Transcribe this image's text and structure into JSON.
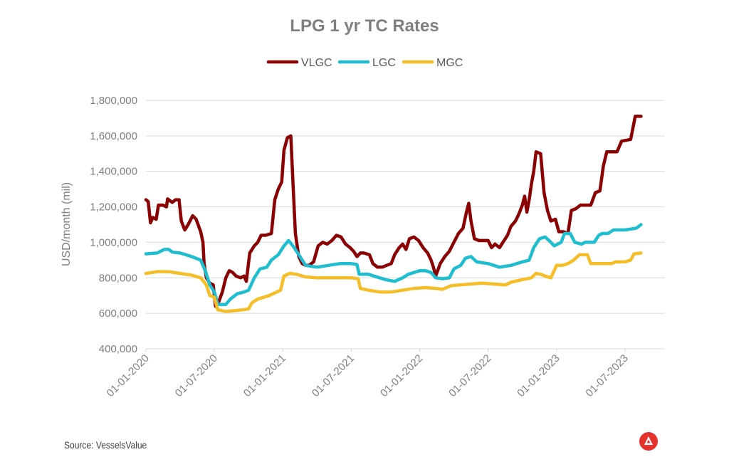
{
  "chart_data": {
    "type": "line",
    "title": "LPG 1 yr TC Rates",
    "xlabel": "",
    "ylabel": "USD/month (mil)",
    "ylim": [
      400000,
      1800000
    ],
    "y_ticks": [
      400000,
      600000,
      800000,
      1000000,
      1200000,
      1400000,
      1600000,
      1800000
    ],
    "y_tick_labels": [
      "400,000",
      "600,000",
      "800,000",
      "1,000,000",
      "1,200,000",
      "1,400,000",
      "1,600,000",
      "1,800,000"
    ],
    "x_tick_labels": [
      "01-01-2020",
      "01-07-2020",
      "01-01-2021",
      "01-07-2021",
      "01-01-2022",
      "01-07-2022",
      "01-01-2023",
      "01-07-2023"
    ],
    "x_range_months": [
      0,
      45.5
    ],
    "gridlines": "horizontal",
    "legend_position": "top-center",
    "series": [
      {
        "name": "VLGC",
        "color": "#8b0000",
        "points": [
          [
            0,
            1240000
          ],
          [
            0.2,
            1230000
          ],
          [
            0.4,
            1110000
          ],
          [
            0.6,
            1140000
          ],
          [
            0.9,
            1130000
          ],
          [
            1.1,
            1210000
          ],
          [
            1.5,
            1210000
          ],
          [
            1.8,
            1200000
          ],
          [
            1.9,
            1245000
          ],
          [
            2.3,
            1225000
          ],
          [
            2.6,
            1240000
          ],
          [
            2.9,
            1240000
          ],
          [
            3.1,
            1120000
          ],
          [
            3.4,
            1070000
          ],
          [
            3.7,
            1100000
          ],
          [
            4.1,
            1150000
          ],
          [
            4.4,
            1130000
          ],
          [
            4.8,
            1060000
          ],
          [
            5.0,
            1000000
          ],
          [
            5.1,
            880000
          ],
          [
            5.3,
            800000
          ],
          [
            5.6,
            770000
          ],
          [
            5.9,
            760000
          ],
          [
            6.1,
            640000
          ],
          [
            6.3,
            650000
          ],
          [
            6.7,
            720000
          ],
          [
            7.0,
            800000
          ],
          [
            7.3,
            840000
          ],
          [
            7.6,
            830000
          ],
          [
            7.9,
            810000
          ],
          [
            8.3,
            800000
          ],
          [
            8.6,
            810000
          ],
          [
            8.8,
            780000
          ],
          [
            9.1,
            940000
          ],
          [
            9.5,
            980000
          ],
          [
            9.8,
            1000000
          ],
          [
            10.1,
            1040000
          ],
          [
            10.5,
            1040000
          ],
          [
            11.0,
            1050000
          ],
          [
            11.3,
            1240000
          ],
          [
            11.6,
            1300000
          ],
          [
            11.9,
            1340000
          ],
          [
            12.1,
            1520000
          ],
          [
            12.4,
            1590000
          ],
          [
            12.7,
            1600000
          ],
          [
            12.85,
            1390000
          ],
          [
            13.1,
            1050000
          ],
          [
            13.4,
            920000
          ],
          [
            13.7,
            880000
          ],
          [
            14.0,
            870000
          ],
          [
            14.3,
            870000
          ],
          [
            14.7,
            890000
          ],
          [
            15.1,
            980000
          ],
          [
            15.5,
            1000000
          ],
          [
            15.9,
            990000
          ],
          [
            16.3,
            1010000
          ],
          [
            16.7,
            1040000
          ],
          [
            17.1,
            1030000
          ],
          [
            17.5,
            990000
          ],
          [
            17.9,
            970000
          ],
          [
            18.2,
            950000
          ],
          [
            18.5,
            920000
          ],
          [
            18.8,
            940000
          ],
          [
            19.1,
            940000
          ],
          [
            19.6,
            930000
          ],
          [
            19.9,
            880000
          ],
          [
            20.3,
            860000
          ],
          [
            20.7,
            860000
          ],
          [
            21.1,
            870000
          ],
          [
            21.5,
            880000
          ],
          [
            21.8,
            930000
          ],
          [
            22.2,
            970000
          ],
          [
            22.5,
            990000
          ],
          [
            22.8,
            960000
          ],
          [
            23.1,
            1020000
          ],
          [
            23.5,
            1030000
          ],
          [
            23.9,
            1010000
          ],
          [
            24.3,
            970000
          ],
          [
            24.7,
            940000
          ],
          [
            25.0,
            900000
          ],
          [
            25.2,
            860000
          ],
          [
            25.4,
            810000
          ],
          [
            25.8,
            880000
          ],
          [
            26.2,
            920000
          ],
          [
            26.6,
            950000
          ],
          [
            27.0,
            1000000
          ],
          [
            27.4,
            1050000
          ],
          [
            27.8,
            1080000
          ],
          [
            28.1,
            1170000
          ],
          [
            28.3,
            1220000
          ],
          [
            28.5,
            1120000
          ],
          [
            28.8,
            1020000
          ],
          [
            29.2,
            1010000
          ],
          [
            29.6,
            1010000
          ],
          [
            30.0,
            1010000
          ],
          [
            30.3,
            970000
          ],
          [
            30.6,
            990000
          ],
          [
            31.0,
            970000
          ],
          [
            31.3,
            1000000
          ],
          [
            31.7,
            1040000
          ],
          [
            32.0,
            1090000
          ],
          [
            32.4,
            1120000
          ],
          [
            32.7,
            1160000
          ],
          [
            33.0,
            1210000
          ],
          [
            33.2,
            1260000
          ],
          [
            33.4,
            1170000
          ],
          [
            33.6,
            1240000
          ],
          [
            33.8,
            1330000
          ],
          [
            34.0,
            1400000
          ],
          [
            34.2,
            1510000
          ],
          [
            34.6,
            1500000
          ],
          [
            34.9,
            1280000
          ],
          [
            35.2,
            1180000
          ],
          [
            35.5,
            1120000
          ],
          [
            35.9,
            1130000
          ],
          [
            36.2,
            1060000
          ],
          [
            36.6,
            1060000
          ],
          [
            37.0,
            1050000
          ],
          [
            37.3,
            1180000
          ],
          [
            37.7,
            1190000
          ],
          [
            38.1,
            1210000
          ],
          [
            38.6,
            1210000
          ],
          [
            39.0,
            1210000
          ],
          [
            39.4,
            1280000
          ],
          [
            39.8,
            1290000
          ],
          [
            40.1,
            1430000
          ],
          [
            40.4,
            1510000
          ],
          [
            41.3,
            1510000
          ],
          [
            41.7,
            1570000
          ],
          [
            42.5,
            1580000
          ],
          [
            42.9,
            1710000
          ],
          [
            43.4,
            1710000
          ]
        ]
      },
      {
        "name": "LGC",
        "color": "#1ebdd0",
        "points": [
          [
            0,
            935000
          ],
          [
            1.0,
            940000
          ],
          [
            1.6,
            960000
          ],
          [
            2.0,
            960000
          ],
          [
            2.3,
            945000
          ],
          [
            3.0,
            940000
          ],
          [
            4.0,
            920000
          ],
          [
            4.8,
            900000
          ],
          [
            5.2,
            840000
          ],
          [
            5.6,
            760000
          ],
          [
            6.0,
            720000
          ],
          [
            6.3,
            650000
          ],
          [
            7.0,
            650000
          ],
          [
            7.4,
            680000
          ],
          [
            8.0,
            710000
          ],
          [
            8.6,
            720000
          ],
          [
            9.0,
            730000
          ],
          [
            9.5,
            800000
          ],
          [
            10.0,
            850000
          ],
          [
            10.6,
            860000
          ],
          [
            11.0,
            900000
          ],
          [
            11.6,
            930000
          ],
          [
            12.1,
            980000
          ],
          [
            12.5,
            1010000
          ],
          [
            13.0,
            970000
          ],
          [
            13.4,
            930000
          ],
          [
            14.0,
            870000
          ],
          [
            15.0,
            860000
          ],
          [
            16.0,
            870000
          ],
          [
            17.0,
            880000
          ],
          [
            18.0,
            880000
          ],
          [
            18.5,
            875000
          ],
          [
            18.7,
            820000
          ],
          [
            19.5,
            820000
          ],
          [
            20.5,
            800000
          ],
          [
            21.0,
            790000
          ],
          [
            21.8,
            780000
          ],
          [
            22.5,
            800000
          ],
          [
            23.0,
            820000
          ],
          [
            24.0,
            840000
          ],
          [
            24.5,
            840000
          ],
          [
            25.0,
            830000
          ],
          [
            25.4,
            800000
          ],
          [
            26.0,
            795000
          ],
          [
            26.6,
            800000
          ],
          [
            27.0,
            850000
          ],
          [
            27.6,
            870000
          ],
          [
            28.0,
            910000
          ],
          [
            28.5,
            920000
          ],
          [
            29.0,
            890000
          ],
          [
            30.0,
            880000
          ],
          [
            31.0,
            860000
          ],
          [
            32.0,
            870000
          ],
          [
            33.0,
            890000
          ],
          [
            33.6,
            900000
          ],
          [
            34.0,
            970000
          ],
          [
            34.5,
            1020000
          ],
          [
            35.0,
            1030000
          ],
          [
            35.5,
            1000000
          ],
          [
            35.8,
            980000
          ],
          [
            36.4,
            1000000
          ],
          [
            36.7,
            1050000
          ],
          [
            37.2,
            1050000
          ],
          [
            37.6,
            1000000
          ],
          [
            38.2,
            990000
          ],
          [
            38.5,
            1000000
          ],
          [
            39.3,
            1000000
          ],
          [
            39.7,
            1040000
          ],
          [
            40.0,
            1050000
          ],
          [
            40.5,
            1050000
          ],
          [
            41.0,
            1070000
          ],
          [
            42.0,
            1070000
          ],
          [
            43.0,
            1080000
          ],
          [
            43.4,
            1100000
          ]
        ]
      },
      {
        "name": "MGC",
        "color": "#f5bd27",
        "points": [
          [
            0,
            825000
          ],
          [
            1.0,
            835000
          ],
          [
            2.0,
            835000
          ],
          [
            3.0,
            825000
          ],
          [
            4.0,
            815000
          ],
          [
            4.8,
            800000
          ],
          [
            5.3,
            760000
          ],
          [
            5.6,
            700000
          ],
          [
            6.0,
            690000
          ],
          [
            6.3,
            620000
          ],
          [
            7.0,
            610000
          ],
          [
            7.8,
            615000
          ],
          [
            8.5,
            620000
          ],
          [
            9.0,
            625000
          ],
          [
            9.3,
            660000
          ],
          [
            9.8,
            680000
          ],
          [
            10.3,
            690000
          ],
          [
            10.8,
            700000
          ],
          [
            11.3,
            715000
          ],
          [
            11.8,
            730000
          ],
          [
            12.1,
            810000
          ],
          [
            12.6,
            825000
          ],
          [
            13.2,
            820000
          ],
          [
            14.0,
            805000
          ],
          [
            15.0,
            800000
          ],
          [
            16.0,
            800000
          ],
          [
            17.0,
            800000
          ],
          [
            18.0,
            800000
          ],
          [
            18.6,
            795000
          ],
          [
            18.8,
            740000
          ],
          [
            19.5,
            730000
          ],
          [
            20.5,
            720000
          ],
          [
            21.5,
            720000
          ],
          [
            22.5,
            730000
          ],
          [
            23.5,
            740000
          ],
          [
            24.5,
            745000
          ],
          [
            25.5,
            740000
          ],
          [
            26.0,
            735000
          ],
          [
            26.7,
            755000
          ],
          [
            27.5,
            760000
          ],
          [
            28.5,
            765000
          ],
          [
            29.5,
            770000
          ],
          [
            30.5,
            765000
          ],
          [
            31.5,
            760000
          ],
          [
            32.0,
            775000
          ],
          [
            33.0,
            790000
          ],
          [
            33.8,
            800000
          ],
          [
            34.2,
            825000
          ],
          [
            34.6,
            820000
          ],
          [
            35.0,
            810000
          ],
          [
            35.5,
            800000
          ],
          [
            36.0,
            870000
          ],
          [
            36.5,
            870000
          ],
          [
            37.0,
            880000
          ],
          [
            37.5,
            900000
          ],
          [
            38.0,
            930000
          ],
          [
            38.7,
            930000
          ],
          [
            39.0,
            880000
          ],
          [
            40.0,
            880000
          ],
          [
            40.8,
            880000
          ],
          [
            41.2,
            890000
          ],
          [
            42.0,
            890000
          ],
          [
            42.5,
            900000
          ],
          [
            42.8,
            935000
          ],
          [
            43.4,
            940000
          ]
        ]
      }
    ]
  },
  "source": "Source: VesselsValue",
  "logo": {
    "name": "VesselsValue logo",
    "color": "#e5322d"
  }
}
